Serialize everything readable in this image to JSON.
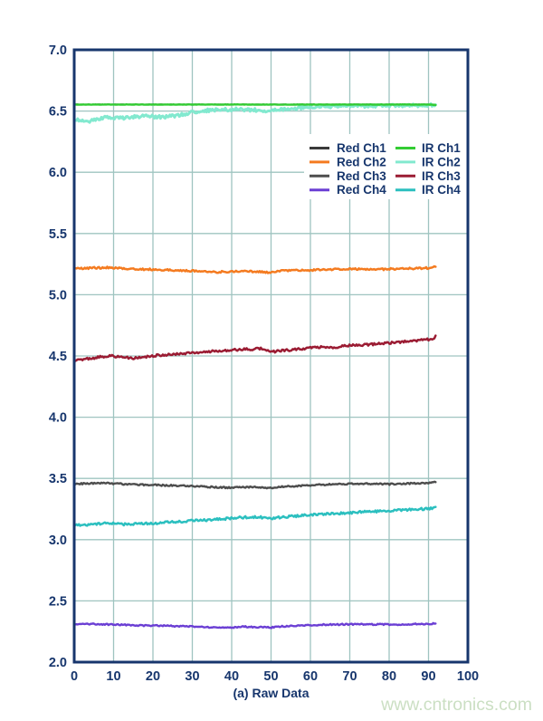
{
  "chart_data": {
    "type": "line",
    "title": "",
    "xlabel": "(a) Raw Data",
    "ylabel": "",
    "xlim": [
      0,
      100
    ],
    "ylim": [
      2.0,
      7.0
    ],
    "xticks": [
      0,
      10,
      20,
      30,
      40,
      50,
      60,
      70,
      80,
      90,
      100
    ],
    "xtick_labels": [
      "0",
      "10",
      "20",
      "30",
      "40",
      "50",
      "60",
      "70",
      "80",
      "90",
      "100"
    ],
    "yticks": [
      2.0,
      2.5,
      3.0,
      3.5,
      4.0,
      4.5,
      5.0,
      5.5,
      6.0,
      6.5,
      7.0
    ],
    "ytick_labels": [
      "2.0",
      "2.5",
      "3.0",
      "3.5",
      "4.0",
      "4.5",
      "5.0",
      "5.5",
      "6.0",
      "6.5",
      "7.0"
    ],
    "grid": true,
    "legend_position": "upper-right-inside",
    "legend_columns": [
      [
        "Red Ch1",
        "Red Ch2",
        "Red Ch3",
        "Red Ch4"
      ],
      [
        "IR Ch1",
        "IR Ch2",
        "IR Ch3",
        "IR Ch4"
      ]
    ],
    "series": [
      {
        "name": "Red Ch1",
        "color": "#3a3a3a",
        "width": 2.0,
        "noise": 0.0008,
        "points": [
          [
            0,
            6.553
          ],
          [
            92,
            6.553
          ]
        ]
      },
      {
        "name": "IR Ch2",
        "color": "#82e9cf",
        "width": 3.0,
        "noise": 0.013,
        "points": [
          [
            0,
            6.435
          ],
          [
            2,
            6.42
          ],
          [
            4,
            6.418
          ],
          [
            6,
            6.43
          ],
          [
            8,
            6.45
          ],
          [
            11,
            6.44
          ],
          [
            14,
            6.45
          ],
          [
            18,
            6.458
          ],
          [
            22,
            6.452
          ],
          [
            26,
            6.462
          ],
          [
            30,
            6.49
          ],
          [
            34,
            6.506
          ],
          [
            38,
            6.51
          ],
          [
            42,
            6.514
          ],
          [
            46,
            6.508
          ],
          [
            49,
            6.497
          ],
          [
            52,
            6.51
          ],
          [
            55,
            6.52
          ],
          [
            58,
            6.527
          ],
          [
            62,
            6.533
          ],
          [
            66,
            6.537
          ],
          [
            72,
            6.54
          ],
          [
            78,
            6.542
          ],
          [
            84,
            6.545
          ],
          [
            92,
            6.548
          ]
        ]
      },
      {
        "name": "IR Ch1",
        "color": "#33cc33",
        "width": 2.4,
        "noise": 0.0015,
        "points": [
          [
            0,
            6.553
          ],
          [
            90.5,
            6.553
          ],
          [
            92,
            6.548
          ]
        ]
      },
      {
        "name": "Red Ch2",
        "color": "#f47b20",
        "width": 2.5,
        "noise": 0.0075,
        "points": [
          [
            0,
            5.212
          ],
          [
            4,
            5.218
          ],
          [
            8,
            5.222
          ],
          [
            12,
            5.215
          ],
          [
            16,
            5.21
          ],
          [
            20,
            5.205
          ],
          [
            24,
            5.203
          ],
          [
            28,
            5.198
          ],
          [
            32,
            5.19
          ],
          [
            36,
            5.185
          ],
          [
            40,
            5.19
          ],
          [
            44,
            5.192
          ],
          [
            47,
            5.188
          ],
          [
            50,
            5.18
          ],
          [
            53,
            5.195
          ],
          [
            56,
            5.198
          ],
          [
            60,
            5.202
          ],
          [
            64,
            5.205
          ],
          [
            68,
            5.21
          ],
          [
            72,
            5.208
          ],
          [
            76,
            5.207
          ],
          [
            80,
            5.21
          ],
          [
            84,
            5.212
          ],
          [
            88,
            5.215
          ],
          [
            91,
            5.22
          ],
          [
            92,
            5.23
          ]
        ]
      },
      {
        "name": "IR Ch3",
        "color": "#9b1c33",
        "width": 2.5,
        "noise": 0.0095,
        "points": [
          [
            0,
            4.468
          ],
          [
            3,
            4.475
          ],
          [
            6,
            4.49
          ],
          [
            9,
            4.502
          ],
          [
            12,
            4.49
          ],
          [
            15,
            4.48
          ],
          [
            18,
            4.492
          ],
          [
            21,
            4.505
          ],
          [
            24,
            4.512
          ],
          [
            27,
            4.516
          ],
          [
            30,
            4.524
          ],
          [
            33,
            4.53
          ],
          [
            36,
            4.54
          ],
          [
            39,
            4.546
          ],
          [
            42,
            4.552
          ],
          [
            45,
            4.556
          ],
          [
            48,
            4.56
          ],
          [
            50,
            4.535
          ],
          [
            52,
            4.54
          ],
          [
            55,
            4.55
          ],
          [
            58,
            4.56
          ],
          [
            61,
            4.57
          ],
          [
            64,
            4.576
          ],
          [
            66,
            4.568
          ],
          [
            69,
            4.582
          ],
          [
            72,
            4.588
          ],
          [
            75,
            4.594
          ],
          [
            78,
            4.6
          ],
          [
            81,
            4.608
          ],
          [
            84,
            4.616
          ],
          [
            87,
            4.624
          ],
          [
            90,
            4.636
          ],
          [
            91.5,
            4.648
          ],
          [
            92,
            4.665
          ]
        ]
      },
      {
        "name": "Red Ch3",
        "color": "#4d4d4d",
        "width": 2.4,
        "noise": 0.006,
        "points": [
          [
            0,
            3.455
          ],
          [
            4,
            3.46
          ],
          [
            8,
            3.462
          ],
          [
            12,
            3.455
          ],
          [
            16,
            3.45
          ],
          [
            20,
            3.447
          ],
          [
            24,
            3.443
          ],
          [
            28,
            3.44
          ],
          [
            32,
            3.435
          ],
          [
            36,
            3.428
          ],
          [
            40,
            3.425
          ],
          [
            44,
            3.43
          ],
          [
            47,
            3.428
          ],
          [
            50,
            3.42
          ],
          [
            53,
            3.432
          ],
          [
            56,
            3.438
          ],
          [
            60,
            3.443
          ],
          [
            64,
            3.45
          ],
          [
            68,
            3.455
          ],
          [
            72,
            3.457
          ],
          [
            76,
            3.455
          ],
          [
            80,
            3.453
          ],
          [
            84,
            3.458
          ],
          [
            88,
            3.462
          ],
          [
            91,
            3.465
          ],
          [
            92,
            3.476
          ]
        ]
      },
      {
        "name": "IR Ch4",
        "color": "#2bbfbf",
        "width": 2.5,
        "noise": 0.0095,
        "points": [
          [
            0,
            3.122
          ],
          [
            2,
            3.114
          ],
          [
            5,
            3.124
          ],
          [
            8,
            3.136
          ],
          [
            11,
            3.128
          ],
          [
            14,
            3.125
          ],
          [
            17,
            3.13
          ],
          [
            20,
            3.133
          ],
          [
            23,
            3.14
          ],
          [
            26,
            3.147
          ],
          [
            29,
            3.152
          ],
          [
            32,
            3.158
          ],
          [
            35,
            3.163
          ],
          [
            38,
            3.17
          ],
          [
            41,
            3.177
          ],
          [
            44,
            3.183
          ],
          [
            47,
            3.186
          ],
          [
            49,
            3.172
          ],
          [
            52,
            3.18
          ],
          [
            55,
            3.19
          ],
          [
            58,
            3.197
          ],
          [
            61,
            3.203
          ],
          [
            64,
            3.21
          ],
          [
            67,
            3.214
          ],
          [
            70,
            3.22
          ],
          [
            73,
            3.225
          ],
          [
            76,
            3.23
          ],
          [
            79,
            3.234
          ],
          [
            82,
            3.238
          ],
          [
            85,
            3.244
          ],
          [
            88,
            3.25
          ],
          [
            91,
            3.256
          ],
          [
            92,
            3.272
          ]
        ]
      },
      {
        "name": "Red Ch4",
        "color": "#6b3fd4",
        "width": 2.4,
        "noise": 0.0055,
        "points": [
          [
            0,
            2.31
          ],
          [
            4,
            2.312
          ],
          [
            8,
            2.308
          ],
          [
            12,
            2.305
          ],
          [
            16,
            2.3
          ],
          [
            20,
            2.298
          ],
          [
            24,
            2.296
          ],
          [
            28,
            2.292
          ],
          [
            32,
            2.287
          ],
          [
            36,
            2.284
          ],
          [
            40,
            2.283
          ],
          [
            43,
            2.289
          ],
          [
            46,
            2.287
          ],
          [
            50,
            2.282
          ],
          [
            53,
            2.292
          ],
          [
            56,
            2.297
          ],
          [
            60,
            2.302
          ],
          [
            64,
            2.306
          ],
          [
            68,
            2.308
          ],
          [
            72,
            2.31
          ],
          [
            75,
            2.307
          ],
          [
            78,
            2.309
          ],
          [
            82,
            2.307
          ],
          [
            86,
            2.31
          ],
          [
            89,
            2.312
          ],
          [
            91,
            2.313
          ],
          [
            92,
            2.321
          ]
        ]
      }
    ]
  },
  "styles": {
    "axis_color": "#17366d",
    "grid_color": "#9fc4c0",
    "tick_text_color": "#17366d",
    "legend_text_color": "#17366d"
  },
  "watermark": {
    "text": "www.cntronics.com",
    "color": "#cbdfc3"
  }
}
